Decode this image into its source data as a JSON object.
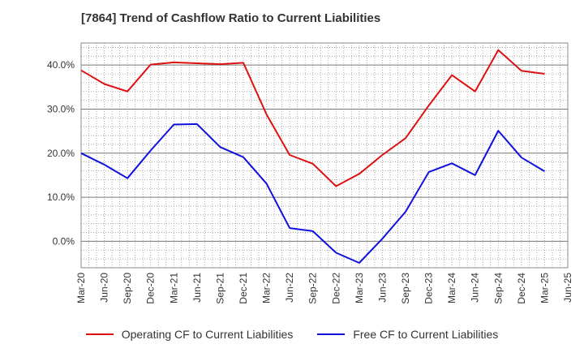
{
  "chart_data": {
    "type": "line",
    "title": "[7864]  Trend of Cashflow Ratio to Current Liabilities",
    "xlabel": "",
    "ylabel": "",
    "x": [
      "Mar-20",
      "Jun-20",
      "Sep-20",
      "Dec-20",
      "Mar-21",
      "Jun-21",
      "Sep-21",
      "Dec-21",
      "Mar-22",
      "Jun-22",
      "Sep-22",
      "Dec-22",
      "Mar-23",
      "Jun-23",
      "Sep-23",
      "Dec-23",
      "Mar-24",
      "Jun-24",
      "Sep-24",
      "Dec-24",
      "Mar-25",
      "Jun-25"
    ],
    "ylim": [
      -6,
      45
    ],
    "yticks": [
      0,
      10,
      20,
      30,
      40
    ],
    "ytick_labels": [
      "0.0%",
      "10.0%",
      "20.0%",
      "30.0%",
      "40.0%"
    ],
    "grid": true,
    "legend_position": "bottom",
    "series": [
      {
        "name": "Operating CF to Current Liabilities",
        "color": "#dd1111",
        "values": [
          38.8,
          35.7,
          34.0,
          40.1,
          40.6,
          40.4,
          40.2,
          40.5,
          28.8,
          19.6,
          17.6,
          12.5,
          15.3,
          19.6,
          23.4,
          30.8,
          37.7,
          34.0,
          43.4,
          38.7,
          38.0,
          null
        ]
      },
      {
        "name": "Free CF to Current Liabilities",
        "color": "#1111dd",
        "values": [
          20.0,
          17.4,
          14.3,
          20.6,
          26.5,
          26.6,
          21.4,
          19.1,
          13.1,
          3.0,
          2.3,
          -2.6,
          -4.9,
          0.6,
          6.7,
          15.7,
          17.7,
          15.0,
          25.1,
          19.0,
          15.9,
          null
        ]
      }
    ]
  }
}
